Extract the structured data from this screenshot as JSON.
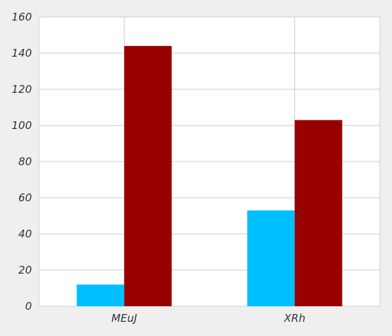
{
  "chart_data": {
    "type": "bar",
    "categories": [
      "MEuJ",
      "XRh"
    ],
    "series": [
      {
        "values": [
          12,
          53
        ],
        "color": "#00bfff"
      },
      {
        "values": [
          144,
          103
        ],
        "color": "#990000"
      }
    ],
    "ylim": [
      0,
      160
    ],
    "yticks": [
      0,
      20,
      40,
      60,
      80,
      100,
      120,
      140,
      160
    ],
    "grid": true,
    "title": "",
    "xlabel": "",
    "ylabel": ""
  }
}
